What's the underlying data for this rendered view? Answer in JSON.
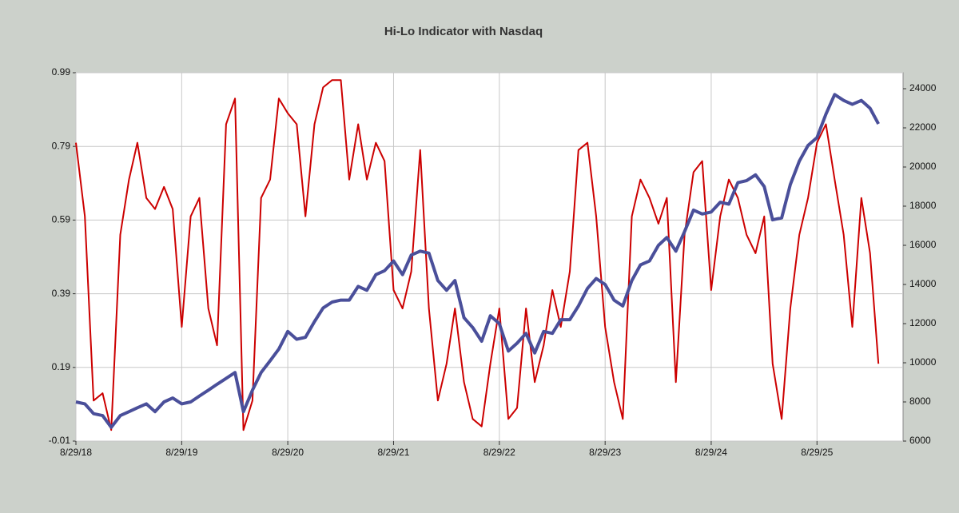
{
  "chart_data": {
    "type": "line",
    "title": "Hi-Lo Indicator with Nasdaq",
    "x": [
      "2018-08-29",
      "2018-09-29",
      "2018-10-29",
      "2018-11-29",
      "2018-12-29",
      "2019-01-29",
      "2019-02-28",
      "2019-03-29",
      "2019-04-29",
      "2019-05-29",
      "2019-06-29",
      "2019-07-29",
      "2019-08-29",
      "2019-09-29",
      "2019-10-29",
      "2019-11-29",
      "2019-12-29",
      "2020-01-29",
      "2020-02-29",
      "2020-03-29",
      "2020-04-29",
      "2020-05-29",
      "2020-06-29",
      "2020-07-29",
      "2020-08-29",
      "2020-09-29",
      "2020-10-29",
      "2020-11-29",
      "2020-12-29",
      "2021-01-29",
      "2021-02-28",
      "2021-03-29",
      "2021-04-29",
      "2021-05-29",
      "2021-06-29",
      "2021-07-29",
      "2021-08-29",
      "2021-09-29",
      "2021-10-29",
      "2021-11-29",
      "2021-12-29",
      "2022-01-29",
      "2022-02-28",
      "2022-03-29",
      "2022-04-29",
      "2022-05-29",
      "2022-06-29",
      "2022-07-29",
      "2022-08-29",
      "2022-09-29",
      "2022-10-29",
      "2022-11-29",
      "2022-12-29",
      "2023-01-29",
      "2023-02-28",
      "2023-03-29",
      "2023-04-29",
      "2023-05-29",
      "2023-06-29",
      "2023-07-29",
      "2023-08-29",
      "2023-09-29",
      "2023-10-29",
      "2023-11-29",
      "2023-12-29",
      "2024-01-29",
      "2024-02-29",
      "2024-03-29",
      "2024-04-29",
      "2024-05-29",
      "2024-06-29",
      "2024-07-29",
      "2024-08-29",
      "2024-09-29",
      "2024-10-29",
      "2024-11-29",
      "2024-12-29",
      "2025-01-29",
      "2025-02-28",
      "2025-03-29",
      "2025-04-29",
      "2025-05-29",
      "2025-06-29",
      "2025-07-29",
      "2025-08-29",
      "2025-09-29",
      "2025-10-29",
      "2025-11-29",
      "2025-12-29",
      "2026-01-29",
      "2026-02-28",
      "2026-03-29"
    ],
    "series": [
      {
        "color": "#cc0000",
        "values": [
          0.8,
          0.6,
          0.1,
          0.12,
          0.02,
          0.55,
          0.7,
          0.8,
          0.65,
          0.62,
          0.68,
          0.62,
          0.3,
          0.6,
          0.65,
          0.35,
          0.25,
          0.85,
          0.92,
          0.02,
          0.1,
          0.65,
          0.7,
          0.92,
          0.88,
          0.85,
          0.6,
          0.85,
          0.95,
          0.97,
          0.97,
          0.7,
          0.85,
          0.7,
          0.8,
          0.75,
          0.4,
          0.35,
          0.45,
          0.78,
          0.35,
          0.1,
          0.2,
          0.35,
          0.15,
          0.05,
          0.03,
          0.2,
          0.35,
          0.05,
          0.08,
          0.35,
          0.15,
          0.25,
          0.4,
          0.3,
          0.45,
          0.78,
          0.8,
          0.6,
          0.3,
          0.15,
          0.05,
          0.6,
          0.7,
          0.65,
          0.58,
          0.65,
          0.15,
          0.55,
          0.72,
          0.75,
          0.4,
          0.6,
          0.7,
          0.65,
          0.55,
          0.5,
          0.6,
          0.2,
          0.05,
          0.35,
          0.55,
          0.65,
          0.8,
          0.85,
          0.7,
          0.55,
          0.3,
          0.65,
          0.5,
          0.2
        ]
      },
      {
        "color": "#4a4f9a",
        "axis": "y2",
        "values": [
          8000,
          7900,
          7400,
          7300,
          6700,
          7300,
          7500,
          7700,
          7900,
          7500,
          8000,
          8200,
          7900,
          8000,
          8300,
          8600,
          8900,
          9200,
          9500,
          7500,
          8600,
          9500,
          10100,
          10700,
          11600,
          11200,
          11300,
          12100,
          12800,
          13100,
          13200,
          13200,
          13900,
          13700,
          14500,
          14700,
          15200,
          14500,
          15500,
          15700,
          15600,
          14200,
          13700,
          14200,
          12300,
          11800,
          11100,
          12400,
          12000,
          10600,
          11000,
          11500,
          10500,
          11600,
          11500,
          12200,
          12200,
          12900,
          13800,
          14300,
          14000,
          13200,
          12900,
          14200,
          15000,
          15200,
          16000,
          16400,
          15700,
          16700,
          17800,
          17600,
          17700,
          18200,
          18100,
          19200,
          19300,
          19600,
          19000,
          17300,
          17400,
          19100,
          20300,
          21100,
          21500,
          22700,
          23700,
          23400,
          23200,
          23400,
          23000,
          22200
        ]
      }
    ],
    "xlim": [
      "2018-08-29",
      "2026-06-22"
    ],
    "xticks": [
      {
        "value": "2018-08-29",
        "label": "8/29/18"
      },
      {
        "value": "2019-08-29",
        "label": "8/29/19"
      },
      {
        "value": "2020-08-29",
        "label": "8/29/20"
      },
      {
        "value": "2021-08-29",
        "label": "8/29/21"
      },
      {
        "value": "2022-08-29",
        "label": "8/29/22"
      },
      {
        "value": "2023-08-29",
        "label": "8/29/23"
      },
      {
        "value": "2024-08-29",
        "label": "8/29/24"
      },
      {
        "value": "2025-08-29",
        "label": "8/29/25"
      }
    ],
    "ylim": [
      -0.01,
      0.99
    ],
    "yticks": [
      -0.01,
      0.19,
      0.39,
      0.59,
      0.79,
      0.99
    ],
    "y2lim": [
      6000,
      24816
    ],
    "y2ticks": [
      6000,
      8000,
      10000,
      12000,
      14000,
      16000,
      18000,
      20000,
      22000,
      24000
    ],
    "grid": true
  }
}
